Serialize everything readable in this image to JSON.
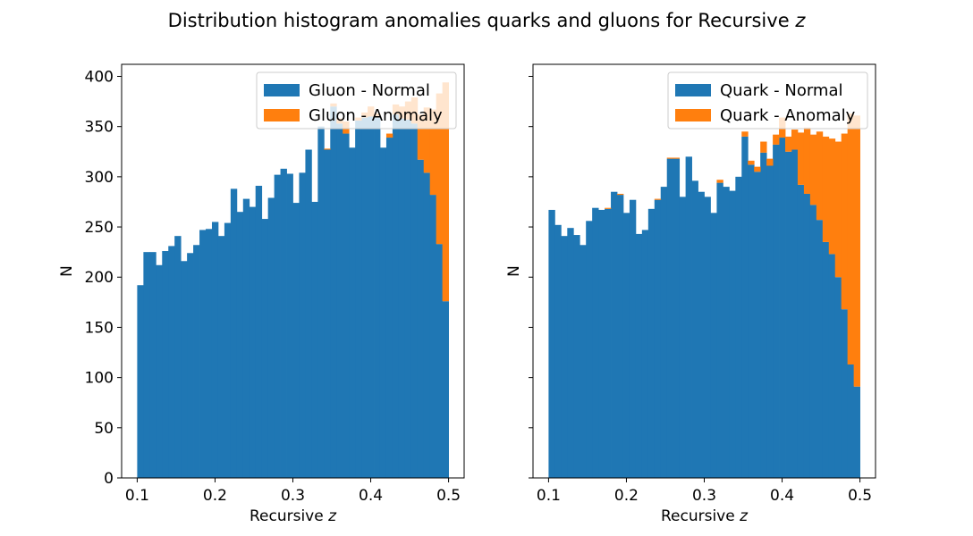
{
  "figure": {
    "title": "Distribution histogram anomalies quarks and gluons for Recursive",
    "title_var": "z"
  },
  "colors": {
    "normal": "#1f77b4",
    "anomaly": "#ff7f0e"
  },
  "chart_data": [
    {
      "type": "bar",
      "stacked": true,
      "xlabel": "Recursive",
      "xlabel_var": "z",
      "ylabel": "N",
      "xlim": [
        0.08,
        0.52
      ],
      "ylim": [
        0,
        412
      ],
      "xticks": [
        0.1,
        0.2,
        0.3,
        0.4,
        0.5
      ],
      "xtick_labels": [
        "0.1",
        "0.2",
        "0.3",
        "0.4",
        "0.5"
      ],
      "yticks": [
        0,
        50,
        100,
        150,
        200,
        250,
        300,
        350,
        400
      ],
      "ytick_labels": [
        "0",
        "50",
        "100",
        "150",
        "200",
        "250",
        "300",
        "350",
        "400"
      ],
      "show_ytick_labels": true,
      "legend_position": "top-right",
      "bin_range": [
        0.1,
        0.5
      ],
      "series": [
        {
          "name": "Gluon - Normal",
          "color": "#1f77b4",
          "values": [
            192,
            225,
            225,
            212,
            226,
            231,
            241,
            216,
            224,
            232,
            247,
            248,
            255,
            241,
            254,
            288,
            265,
            278,
            270,
            291,
            258,
            279,
            302,
            308,
            303,
            274,
            304,
            327,
            275,
            350,
            327,
            370,
            353,
            343,
            329,
            356,
            359,
            360,
            359,
            329,
            339,
            362,
            358,
            357,
            353,
            317,
            304,
            282,
            233,
            176
          ]
        },
        {
          "name": "Gluon - Anomaly",
          "color": "#ff7f0e",
          "values": [
            0,
            0,
            0,
            0,
            0,
            0,
            0,
            0,
            0,
            0,
            0,
            0,
            0,
            0,
            0,
            0,
            0,
            0,
            0,
            0,
            0,
            0,
            0,
            0,
            0,
            0,
            0,
            0,
            0,
            0,
            1,
            3,
            5,
            12,
            0,
            3,
            5,
            10,
            4,
            0,
            4,
            10,
            12,
            18,
            26,
            45,
            65,
            85,
            150,
            218
          ]
        }
      ]
    },
    {
      "type": "bar",
      "stacked": true,
      "xlabel": "Recursive",
      "xlabel_var": "z",
      "ylabel": "N",
      "xlim": [
        0.08,
        0.52
      ],
      "ylim": [
        0,
        412
      ],
      "xticks": [
        0.1,
        0.2,
        0.3,
        0.4,
        0.5
      ],
      "xtick_labels": [
        "0.1",
        "0.2",
        "0.3",
        "0.4",
        "0.5"
      ],
      "yticks": [
        0,
        50,
        100,
        150,
        200,
        250,
        300,
        350,
        400
      ],
      "show_ytick_labels": false,
      "legend_position": "top-right",
      "bin_range": [
        0.1,
        0.5
      ],
      "series": [
        {
          "name": "Quark - Normal",
          "color": "#1f77b4",
          "values": [
            267,
            252,
            241,
            249,
            242,
            232,
            256,
            269,
            267,
            268,
            285,
            282,
            264,
            277,
            243,
            247,
            268,
            277,
            290,
            318,
            318,
            280,
            320,
            296,
            285,
            280,
            264,
            294,
            290,
            286,
            300,
            340,
            312,
            305,
            324,
            311,
            332,
            339,
            325,
            327,
            292,
            283,
            272,
            257,
            235,
            223,
            200,
            168,
            113,
            91
          ]
        },
        {
          "name": "Quark - Anomaly",
          "color": "#ff7f0e",
          "values": [
            0,
            0,
            0,
            0,
            0,
            0,
            0,
            0,
            0,
            1,
            0,
            1,
            0,
            0,
            0,
            0,
            0,
            1,
            0,
            1,
            1,
            0,
            0,
            0,
            0,
            0,
            0,
            3,
            0,
            0,
            0,
            5,
            4,
            5,
            11,
            7,
            10,
            20,
            15,
            20,
            52,
            66,
            70,
            88,
            105,
            115,
            135,
            175,
            250,
            270
          ]
        }
      ]
    }
  ]
}
